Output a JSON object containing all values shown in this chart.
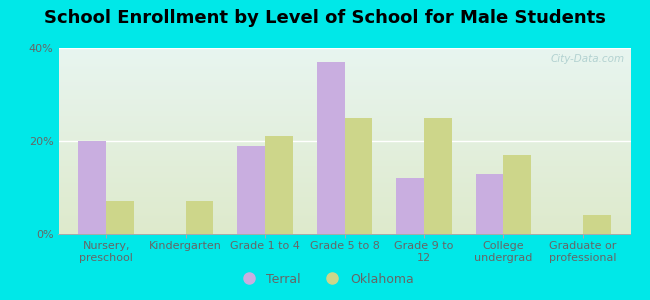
{
  "title": "School Enrollment by Level of School for Male Students",
  "categories": [
    "Nursery,\npreschool",
    "Kindergarten",
    "Grade 1 to 4",
    "Grade 5 to 8",
    "Grade 9 to\n12",
    "College\nundergrad",
    "Graduate or\nprofessional"
  ],
  "terral_values": [
    20,
    0,
    19,
    37,
    12,
    13,
    0
  ],
  "oklahoma_values": [
    7,
    7,
    21,
    25,
    25,
    17,
    4
  ],
  "terral_color": "#c9aee0",
  "oklahoma_color": "#cdd68a",
  "background_color": "#00e8e8",
  "plot_bg_top": "#e8f5f0",
  "plot_bg_bottom": "#deeacc",
  "ylim": [
    0,
    40
  ],
  "yticks": [
    0,
    20,
    40
  ],
  "ytick_labels": [
    "0%",
    "20%",
    "40%"
  ],
  "legend_labels": [
    "Terral",
    "Oklahoma"
  ],
  "watermark": "City-Data.com",
  "bar_width": 0.35,
  "font_color": "#666666",
  "title_fontsize": 13,
  "tick_fontsize": 8
}
